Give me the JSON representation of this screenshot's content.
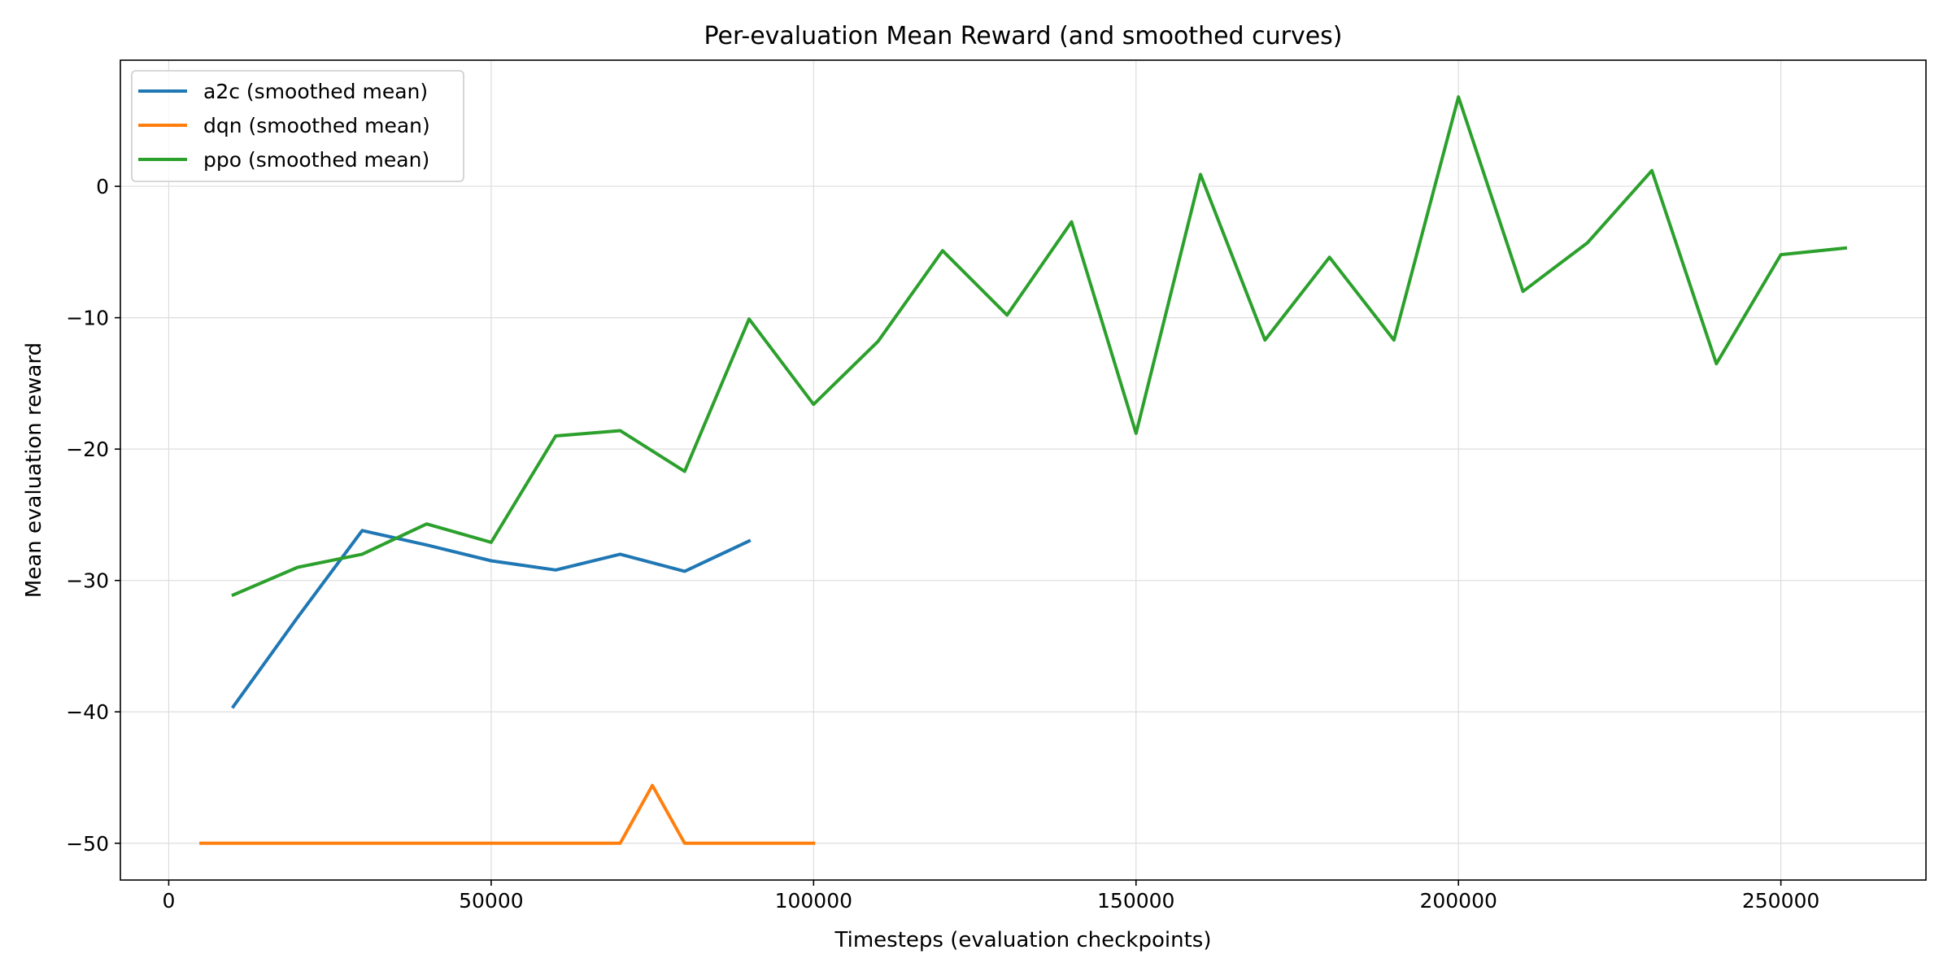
{
  "chart_data": {
    "type": "line",
    "title": "Per-evaluation Mean Reward (and smoothed curves)",
    "xlabel": "Timesteps (evaluation checkpoints)",
    "ylabel": "Mean evaluation reward",
    "xlim": [
      -7500,
      272500
    ],
    "ylim": [
      -52.8,
      9.6
    ],
    "xticks": [
      0,
      50000,
      100000,
      150000,
      200000,
      250000
    ],
    "xtick_labels": [
      "0",
      "50000",
      "100000",
      "150000",
      "200000",
      "250000"
    ],
    "yticks": [
      0,
      -10,
      -20,
      -30,
      -40,
      -50
    ],
    "ytick_labels": [
      "0",
      "−10",
      "−20",
      "−30",
      "−40",
      "−50"
    ],
    "grid": true,
    "legend_position": "top-left",
    "series": [
      {
        "name": "a2c (smoothed mean)",
        "color": "#1f77b4",
        "x": [
          10000,
          20000,
          30000,
          40000,
          50000,
          60000,
          70000,
          80000,
          90000
        ],
        "y": [
          -39.6,
          -32.8,
          -26.2,
          -27.3,
          -28.5,
          -29.2,
          -28.0,
          -29.3,
          -27.0
        ]
      },
      {
        "name": "dqn (smoothed mean)",
        "color": "#ff7f0e",
        "x": [
          5000,
          10000,
          20000,
          30000,
          40000,
          50000,
          60000,
          70000,
          75000,
          80000,
          90000,
          100000
        ],
        "y": [
          -50,
          -50,
          -50,
          -50,
          -50,
          -50,
          -50,
          -50,
          -45.6,
          -50,
          -50,
          -50
        ]
      },
      {
        "name": "ppo (smoothed mean)",
        "color": "#2ca02c",
        "x": [
          10000,
          20000,
          30000,
          40000,
          50000,
          60000,
          70000,
          80000,
          90000,
          100000,
          110000,
          120000,
          130000,
          140000,
          150000,
          160000,
          170000,
          180000,
          190000,
          200000,
          210000,
          220000,
          230000,
          240000,
          250000,
          260000
        ],
        "y": [
          -31.1,
          -29.0,
          -28.0,
          -25.7,
          -27.1,
          -19.0,
          -18.6,
          -21.7,
          -10.1,
          -16.6,
          -11.8,
          -4.9,
          -9.8,
          -2.7,
          -18.8,
          0.9,
          -11.7,
          -5.4,
          -11.7,
          6.8,
          -8.0,
          -4.3,
          1.2,
          -13.5,
          -5.2,
          -4.7
        ]
      }
    ]
  }
}
